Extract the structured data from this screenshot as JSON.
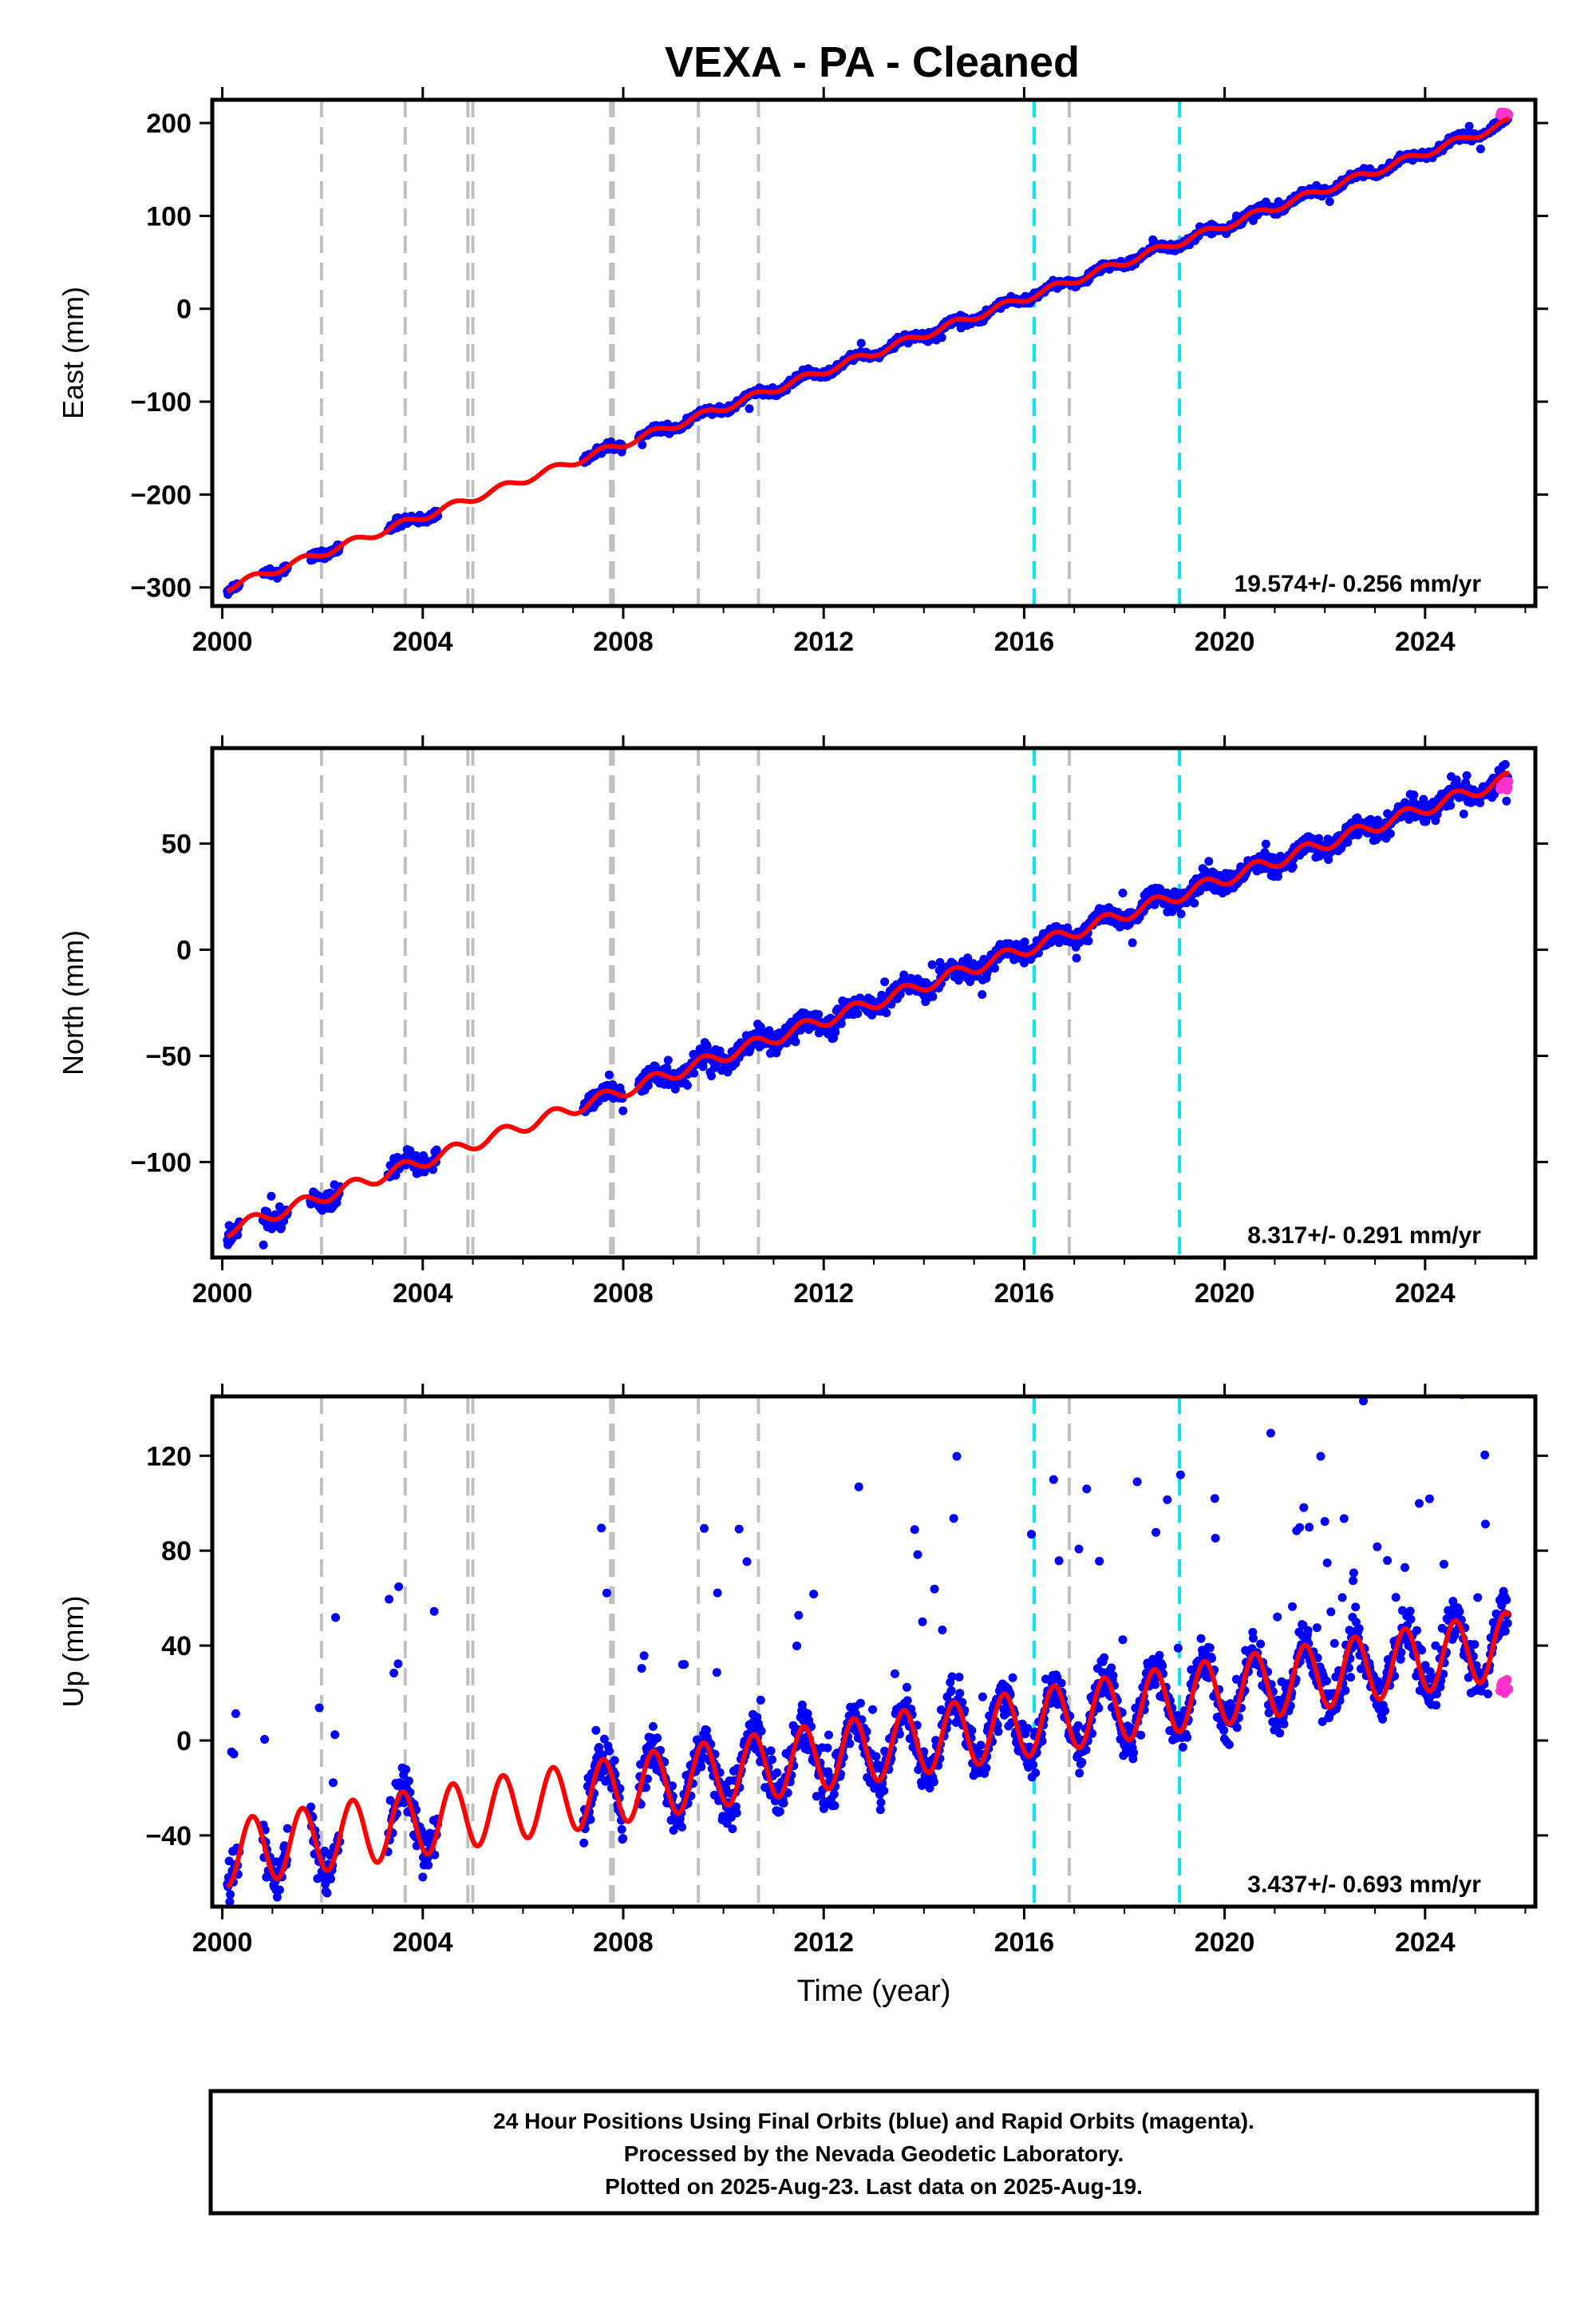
{
  "title": "VEXA  - PA - Cleaned",
  "footer": {
    "line1": "24 Hour Positions Using Final Orbits (blue) and Rapid Orbits (magenta).",
    "line2": "Processed by the Nevada Geodetic Laboratory.",
    "line3": "Plotted on 2025-Aug-23. Last data on 2025-Aug-19."
  },
  "colors": {
    "final_points": "#0000ff",
    "rapid_points": "#ff33cc",
    "model_line": "#ff0000",
    "equipment_change_lines": "#c0c0c0",
    "event_lines": "#00e5ee"
  },
  "chart_data": [
    {
      "type": "scatter",
      "ylabel": "East (mm)",
      "xlim": [
        1999.8,
        2026.2
      ],
      "ylim": [
        -320,
        225
      ],
      "xticks": [
        2000,
        2004,
        2008,
        2012,
        2016,
        2020,
        2024
      ],
      "yticks": [
        -300,
        -200,
        -100,
        0,
        100,
        200
      ],
      "ytick_labels": [
        "−300",
        "−200",
        "−100",
        "0",
        "100",
        "200"
      ],
      "rate_label": "19.574+/- 0.256 mm/yr",
      "rate": 19.574,
      "intercept": -302,
      "seasonal_amplitude": 4,
      "noise": 3,
      "outlier_fraction": 0.02,
      "outlier_span": 12,
      "rapid_y": 210,
      "gray_lines": [
        2001.98,
        2003.65,
        2004.9,
        2005.0,
        2007.75,
        2007.8,
        2009.5,
        2010.7,
        2016.9
      ],
      "cyan_lines": [
        2016.2,
        2019.1
      ]
    },
    {
      "type": "scatter",
      "ylabel": "North (mm)",
      "xlim": [
        1999.8,
        2026.2
      ],
      "ylim": [
        -145,
        95
      ],
      "xticks": [
        2000,
        2004,
        2008,
        2012,
        2016,
        2020,
        2024
      ],
      "yticks": [
        -100,
        -50,
        0,
        50
      ],
      "ytick_labels": [
        "−100",
        "−50",
        "0",
        "50"
      ],
      "rate_label": "8.317+/- 0.291 mm/yr",
      "rate": 8.317,
      "intercept": -133,
      "seasonal_amplitude": 3,
      "noise": 3.2,
      "outlier_fraction": 0.03,
      "outlier_span": 12,
      "rapid_y": 77,
      "gray_lines": [
        2001.98,
        2003.65,
        2004.9,
        2005.0,
        2007.75,
        2007.8,
        2009.5,
        2010.7,
        2016.9
      ],
      "cyan_lines": [
        2016.2,
        2019.1
      ]
    },
    {
      "type": "scatter",
      "ylabel": "Up (mm)",
      "xlabel": "Time (year)",
      "xlim": [
        1999.8,
        2026.2
      ],
      "ylim": [
        -70,
        145
      ],
      "xticks": [
        2000,
        2004,
        2008,
        2012,
        2016,
        2020,
        2024
      ],
      "yticks": [
        -40,
        0,
        40,
        80,
        120
      ],
      "ytick_labels": [
        "−40",
        "0",
        "40",
        "80",
        "120"
      ],
      "rate_label": "3.437+/- 0.693 mm/yr",
      "rate": 3.437,
      "intercept": -48,
      "seasonal_amplitude": 14,
      "noise": 7,
      "outlier_fraction": 0.06,
      "outlier_span": 110,
      "rapid_y": 24,
      "gray_lines": [
        2001.98,
        2003.65,
        2004.9,
        2005.0,
        2007.75,
        2007.8,
        2009.5,
        2010.7,
        2016.9
      ],
      "cyan_lines": [
        2016.2,
        2019.1
      ]
    }
  ]
}
